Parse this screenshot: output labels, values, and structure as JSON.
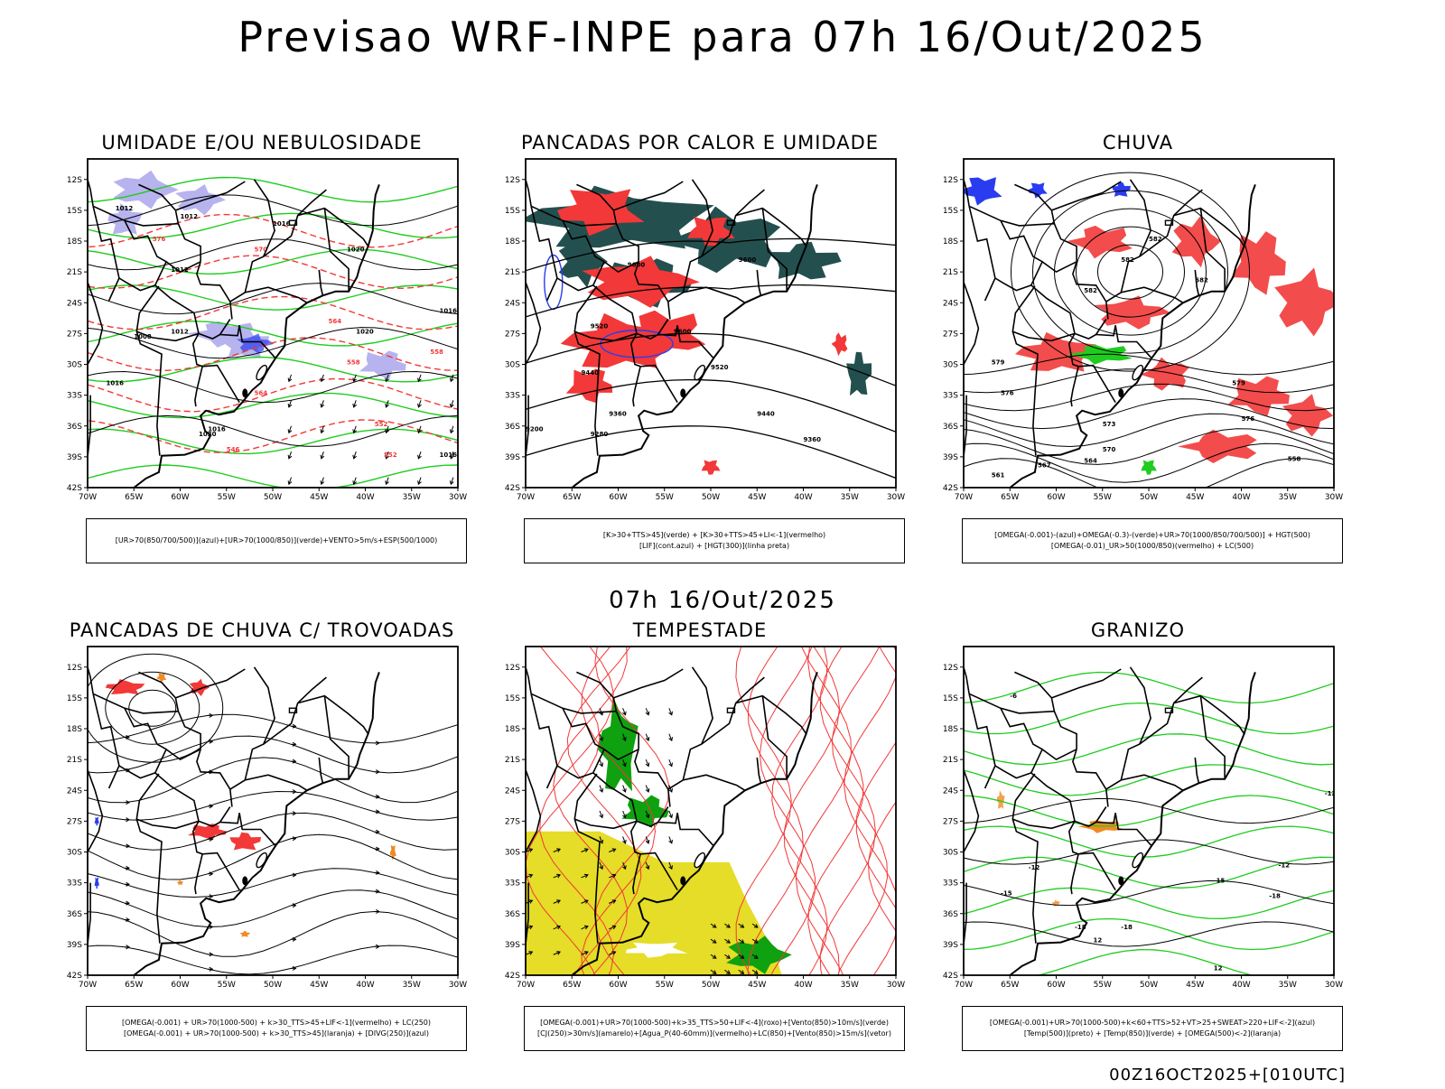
{
  "main_title": "Previsao WRF-INPE  para 07h 16/Out/2025",
  "mid_title": "07h 16/Out/2025",
  "footer": "00Z16OCT2025+[010UTC]",
  "axes": {
    "lat_ticks": [
      "12S",
      "15S",
      "18S",
      "21S",
      "24S",
      "27S",
      "30S",
      "33S",
      "36S",
      "39S",
      "42S"
    ],
    "lon_ticks": [
      "70W",
      "65W",
      "60W",
      "55W",
      "50W",
      "45W",
      "40W",
      "35W",
      "30W"
    ]
  },
  "colors": {
    "green": "#1fcc1f",
    "red": "#f23838",
    "blue": "#2a3cf0",
    "dark_teal": "#244f4f",
    "lavender": "#b7b3ee",
    "yellow": "#e5dd27",
    "orange": "#f08a24",
    "dark_green": "#0fa10f"
  },
  "chart_data": [
    {
      "type": "map",
      "title": "UMIDADE E/OU NEBULOSIDADE",
      "legend": [
        "[UR>70(850/700/500)](azul)+[UR>70(1000/850)](verde)+VENTO>5m/s+ESP(500/1000)"
      ],
      "contour_labels": [
        "1012",
        "1012",
        "1012",
        "1016",
        "1020",
        "1020",
        "1012",
        "1008",
        "1016",
        "1016",
        "1020",
        "1016",
        "1016",
        "576",
        "570",
        "564",
        "558",
        "552",
        "546",
        "564",
        "558",
        "552"
      ],
      "fields": [
        "lavender",
        "green",
        "red-dashed",
        "black"
      ]
    },
    {
      "type": "map",
      "title": "PANCADAS POR CALOR E UMIDADE",
      "legend": [
        "[K>30+TTS>45](verde) + [K>30+TTS>45+LI<-1](vermelho)",
        "[LIF](cont.azul) + [HGT(300)](linha preta)"
      ],
      "contour_labels": [
        "9600",
        "9600",
        "9600",
        "9520",
        "9520",
        "9440",
        "9440",
        "9360",
        "9360",
        "9280",
        "9200"
      ],
      "fields": [
        "dark_teal",
        "red",
        "blue",
        "black"
      ]
    },
    {
      "type": "map",
      "title": "CHUVA",
      "legend": [
        "[OMEGA(-0.001)-(azul)+OMEGA(-0.3)-(verde)+UR>70(1000/850/700/500)] + HGT(500)",
        "[OMEGA(-0.01)_UR>50(1000/850)(vermelho) + LC(500)"
      ],
      "contour_labels": [
        "582",
        "582",
        "582",
        "582",
        "579",
        "579",
        "576",
        "576",
        "573",
        "570",
        "567",
        "564",
        "561",
        "558"
      ],
      "fields": [
        "red",
        "blue",
        "green",
        "black"
      ]
    },
    {
      "type": "map",
      "title": "PANCADAS DE CHUVA C/ TROVOADAS",
      "legend": [
        "[OMEGA(-0.001) + UR>70(1000-500) + k>30_TTS>45+LIF<-1](vermelho) + LC(250)",
        "[OMEGA(-0.001) + UR>70(1000-500) + k>30_TTS>45](laranja) + [DIVG(250)](azul)"
      ],
      "contour_labels": [],
      "fields": [
        "red",
        "orange",
        "blue",
        "black"
      ]
    },
    {
      "type": "map",
      "title": "TEMPESTADE",
      "legend": [
        "[OMEGA(-0.001)+UR>70(1000-500)+k>35_TTS>50+LIF<-4](roxo)+[Vento(850)>10m/s](verde)",
        "[CJ(250)>30m/s](amarelo)+[Agua_P(40-60mm)](vermelho)+LC(850)+[Vento(850)>15m/s](vetor)"
      ],
      "contour_labels": [],
      "fields": [
        "yellow",
        "dark_green",
        "red",
        "black"
      ]
    },
    {
      "type": "map",
      "title": "GRANIZO",
      "legend": [
        "[OMEGA(-0.001)+UR>70(1000-500)+k<60+TTS>52+VT>25+SWEAT>220+LIF<-2](azul)",
        "[Temp(500)](preto) + [Temp(850)](verde) + [OMEGA(500)<-2](laranja)"
      ],
      "contour_labels": [
        "-6",
        "-12",
        "-12",
        "-12",
        "-15",
        "-15",
        "-18",
        "-18",
        "-18",
        "12",
        "12"
      ],
      "fields": [
        "green",
        "orange",
        "black"
      ]
    }
  ]
}
